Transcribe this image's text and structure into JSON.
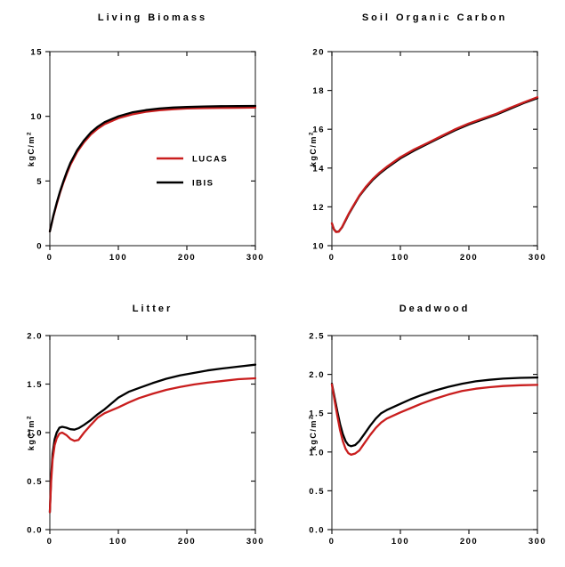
{
  "figure": {
    "background": "#ffffff",
    "models": [
      "LUCAS",
      "IBIS"
    ],
    "colors": {
      "lucas": "#c91e1e",
      "ibis": "#000000",
      "frame": "#3c3c3c",
      "tick": "#1a1a1a",
      "text": "#000000"
    }
  },
  "chart_data": [
    {
      "type": "line",
      "title": "Living Biomass",
      "ylabel": "kgC/m",
      "ylabel_sup": "2",
      "xlim": [
        0,
        300
      ],
      "ylim": [
        0,
        15
      ],
      "xticks": {
        "values": [
          0,
          100,
          200,
          300
        ],
        "labels": [
          "0",
          "100",
          "200",
          "300"
        ]
      },
      "yticks": {
        "values": [
          0,
          5,
          10,
          15
        ],
        "labels": [
          "0",
          "5",
          "10",
          "15"
        ]
      },
      "grid": false,
      "legend": {
        "position": "middle-right",
        "items": [
          {
            "label": "LUCAS",
            "color": "#c91e1e"
          },
          {
            "label": "IBIS",
            "color": "#000000"
          }
        ]
      },
      "series": [
        {
          "name": "LUCAS",
          "color": "#c91e1e",
          "x": [
            0,
            5,
            10,
            15,
            20,
            25,
            30,
            40,
            50,
            60,
            70,
            80,
            100,
            120,
            140,
            160,
            180,
            200,
            225,
            250,
            275,
            300
          ],
          "y": [
            1.1,
            2.25,
            3.2,
            4.1,
            4.9,
            5.6,
            6.25,
            7.25,
            8.0,
            8.6,
            9.05,
            9.4,
            9.85,
            10.15,
            10.35,
            10.47,
            10.55,
            10.6,
            10.63,
            10.65,
            10.66,
            10.67
          ]
        },
        {
          "name": "IBIS",
          "color": "#000000",
          "x": [
            0,
            5,
            10,
            15,
            20,
            25,
            30,
            40,
            50,
            60,
            70,
            80,
            100,
            120,
            140,
            160,
            180,
            200,
            225,
            250,
            275,
            300
          ],
          "y": [
            1.1,
            2.3,
            3.3,
            4.2,
            5.0,
            5.75,
            6.4,
            7.4,
            8.15,
            8.75,
            9.2,
            9.55,
            10.0,
            10.3,
            10.48,
            10.6,
            10.68,
            10.72,
            10.76,
            10.78,
            10.79,
            10.8
          ]
        }
      ]
    },
    {
      "type": "line",
      "title": "Soil Organic Carbon",
      "ylabel": "kgC/m",
      "ylabel_sup": "2",
      "xlim": [
        0,
        300
      ],
      "ylim": [
        10,
        20
      ],
      "xticks": {
        "values": [
          0,
          100,
          200,
          300
        ],
        "labels": [
          "0",
          "100",
          "200",
          "300"
        ]
      },
      "yticks": {
        "values": [
          10,
          12,
          14,
          16,
          18,
          20
        ],
        "labels": [
          "10",
          "12",
          "14",
          "16",
          "18",
          "20"
        ]
      },
      "grid": false,
      "series": [
        {
          "name": "IBIS",
          "color": "#000000",
          "x": [
            0,
            3,
            6,
            10,
            15,
            20,
            25,
            30,
            40,
            50,
            60,
            70,
            80,
            100,
            120,
            140,
            160,
            180,
            200,
            220,
            240,
            260,
            280,
            300
          ],
          "y": [
            11.15,
            10.85,
            10.72,
            10.73,
            10.95,
            11.3,
            11.65,
            11.95,
            12.55,
            13.0,
            13.4,
            13.72,
            14.0,
            14.5,
            14.9,
            15.25,
            15.6,
            15.95,
            16.25,
            16.5,
            16.75,
            17.05,
            17.35,
            17.6
          ]
        },
        {
          "name": "LUCAS",
          "color": "#c91e1e",
          "x": [
            0,
            3,
            6,
            10,
            15,
            20,
            25,
            30,
            40,
            50,
            60,
            70,
            80,
            100,
            120,
            140,
            160,
            180,
            200,
            220,
            240,
            260,
            280,
            300
          ],
          "y": [
            11.15,
            10.83,
            10.7,
            10.72,
            10.97,
            11.33,
            11.68,
            11.98,
            12.58,
            13.05,
            13.45,
            13.78,
            14.06,
            14.56,
            14.96,
            15.3,
            15.65,
            16.0,
            16.3,
            16.55,
            16.8,
            17.1,
            17.38,
            17.65
          ]
        }
      ]
    },
    {
      "type": "line",
      "title": "Litter",
      "ylabel": "kgC/m",
      "ylabel_sup": "2",
      "xlim": [
        0,
        300
      ],
      "ylim": [
        0,
        2
      ],
      "xticks": {
        "values": [
          0,
          100,
          200,
          300
        ],
        "labels": [
          "0",
          "100",
          "200",
          "300"
        ]
      },
      "yticks": {
        "values": [
          0,
          0.5,
          1,
          1.5,
          2
        ],
        "labels": [
          "0.0",
          "0.5",
          "1.0",
          "1.5",
          "2.0"
        ]
      },
      "grid": false,
      "series": [
        {
          "name": "IBIS",
          "color": "#000000",
          "x": [
            0,
            2,
            4,
            7,
            10,
            14,
            18,
            24,
            30,
            36,
            42,
            50,
            60,
            70,
            80,
            90,
            100,
            115,
            130,
            150,
            170,
            190,
            210,
            230,
            250,
            275,
            300
          ],
          "y": [
            0.18,
            0.55,
            0.78,
            0.93,
            1.0,
            1.05,
            1.06,
            1.05,
            1.035,
            1.03,
            1.045,
            1.08,
            1.13,
            1.19,
            1.24,
            1.3,
            1.36,
            1.42,
            1.46,
            1.51,
            1.555,
            1.59,
            1.615,
            1.64,
            1.66,
            1.68,
            1.7
          ]
        },
        {
          "name": "LUCAS",
          "color": "#c91e1e",
          "x": [
            0,
            2,
            4,
            7,
            10,
            14,
            18,
            24,
            30,
            36,
            42,
            50,
            60,
            70,
            80,
            90,
            100,
            115,
            130,
            150,
            170,
            190,
            210,
            230,
            250,
            275,
            300
          ],
          "y": [
            0.18,
            0.5,
            0.72,
            0.87,
            0.94,
            0.99,
            1.0,
            0.975,
            0.935,
            0.915,
            0.925,
            1.0,
            1.08,
            1.155,
            1.2,
            1.23,
            1.26,
            1.31,
            1.355,
            1.4,
            1.44,
            1.47,
            1.495,
            1.515,
            1.53,
            1.55,
            1.56
          ]
        }
      ]
    },
    {
      "type": "line",
      "title": "Deadwood",
      "ylabel": "kgC/m",
      "ylabel_sup": "2",
      "xlim": [
        0,
        300
      ],
      "ylim": [
        0,
        2.5
      ],
      "xticks": {
        "values": [
          0,
          100,
          200,
          300
        ],
        "labels": [
          "0",
          "100",
          "200",
          "300"
        ]
      },
      "yticks": {
        "values": [
          0,
          0.5,
          1,
          1.5,
          2,
          2.5
        ],
        "labels": [
          "0.0",
          "0.5",
          "1.0",
          "1.5",
          "2.0",
          "2.5"
        ]
      },
      "grid": false,
      "series": [
        {
          "name": "IBIS",
          "color": "#000000",
          "x": [
            0,
            4,
            8,
            12,
            16,
            20,
            24,
            28,
            34,
            40,
            48,
            56,
            64,
            72,
            80,
            90,
            100,
            115,
            130,
            150,
            170,
            190,
            210,
            230,
            250,
            275,
            300
          ],
          "y": [
            1.88,
            1.7,
            1.52,
            1.36,
            1.23,
            1.14,
            1.09,
            1.075,
            1.09,
            1.14,
            1.24,
            1.34,
            1.43,
            1.5,
            1.54,
            1.58,
            1.62,
            1.68,
            1.73,
            1.79,
            1.84,
            1.88,
            1.91,
            1.93,
            1.945,
            1.955,
            1.96
          ]
        },
        {
          "name": "LUCAS",
          "color": "#c91e1e",
          "x": [
            0,
            4,
            8,
            12,
            16,
            20,
            24,
            28,
            34,
            40,
            48,
            56,
            64,
            72,
            80,
            90,
            100,
            115,
            130,
            150,
            170,
            190,
            210,
            230,
            250,
            275,
            300
          ],
          "y": [
            1.87,
            1.66,
            1.46,
            1.28,
            1.14,
            1.04,
            0.985,
            0.965,
            0.98,
            1.02,
            1.12,
            1.22,
            1.31,
            1.38,
            1.43,
            1.47,
            1.51,
            1.565,
            1.62,
            1.685,
            1.74,
            1.785,
            1.815,
            1.835,
            1.85,
            1.86,
            1.865
          ]
        }
      ]
    }
  ]
}
